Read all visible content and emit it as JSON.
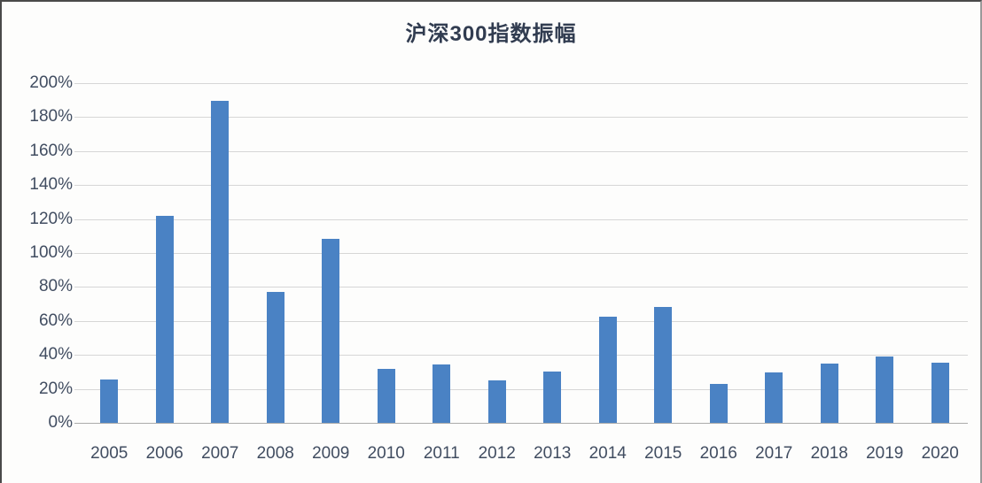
{
  "title": "沪深300指数振幅",
  "colors": {
    "bar": "#4a82c4",
    "gridline": "#d6d6d6",
    "axis_line": "#ababab",
    "title_text": "#313c50",
    "axis_text": "#414d61",
    "frame_border": "#4a4a4a"
  },
  "chart_data": {
    "type": "bar",
    "title": "沪深300指数振幅",
    "categories": [
      "2005",
      "2006",
      "2007",
      "2008",
      "2009",
      "2010",
      "2011",
      "2012",
      "2013",
      "2014",
      "2015",
      "2016",
      "2017",
      "2018",
      "2019",
      "2020"
    ],
    "values": [
      25.3,
      121.9,
      189.8,
      76.9,
      108.3,
      31.6,
      34.6,
      25.2,
      30.0,
      62.4,
      68.1,
      22.8,
      29.5,
      34.7,
      39.1,
      35.2
    ],
    "xlabel": "",
    "ylabel": "",
    "ylim": [
      0,
      200
    ],
    "ytick_step": 20,
    "yticks": [
      "0%",
      "20%",
      "40%",
      "60%",
      "80%",
      "100%",
      "120%",
      "140%",
      "160%",
      "180%",
      "200%"
    ],
    "grid": true,
    "legend_position": "none",
    "bar_color": "#4a82c4"
  }
}
